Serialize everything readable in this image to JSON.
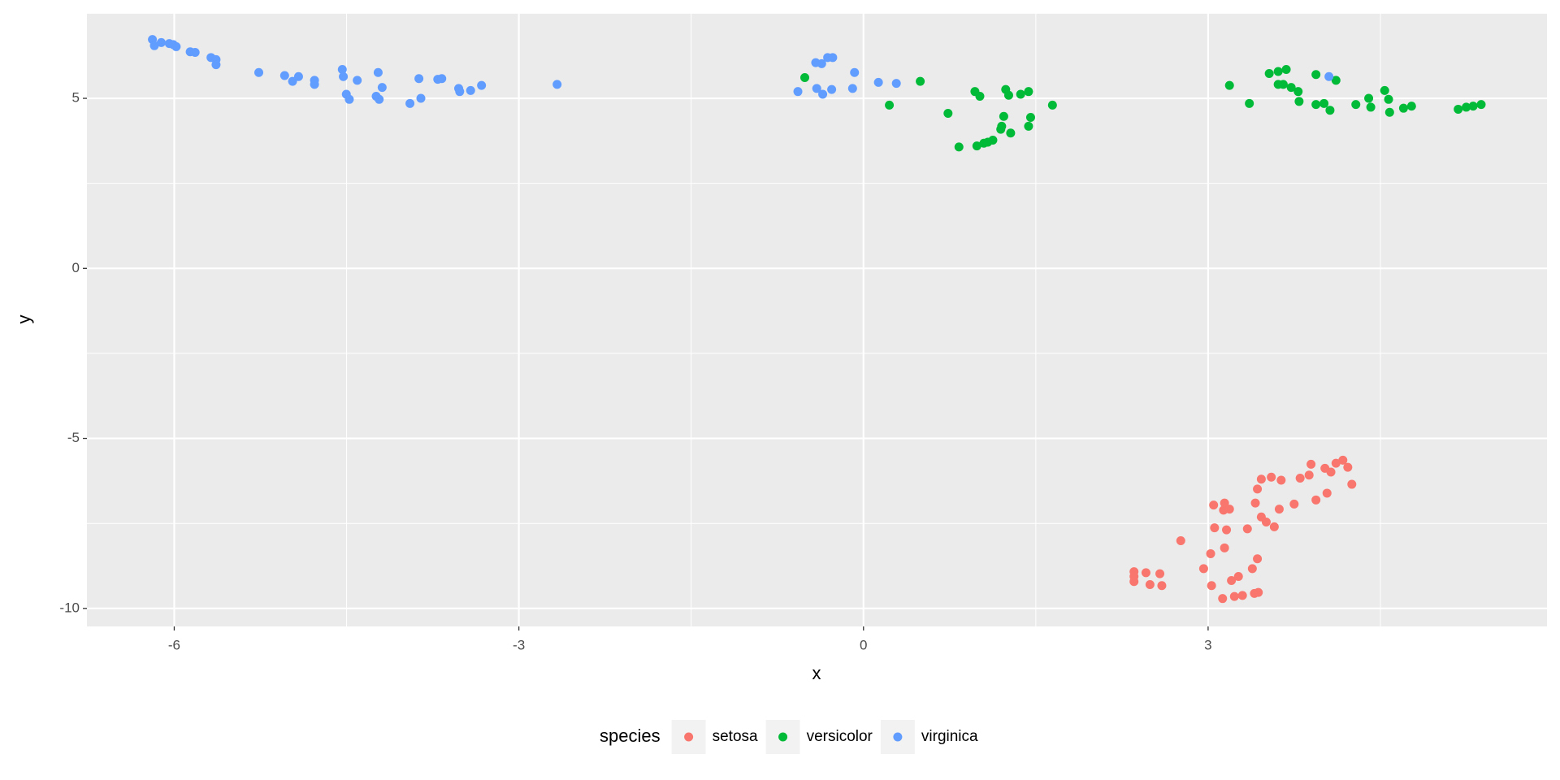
{
  "chart_data": {
    "type": "scatter",
    "x_label": "x",
    "y_label": "y",
    "legend_title": "species",
    "legend_position": "bottom",
    "grid": true,
    "background": "#ebebeb",
    "grid_color": "#ffffff",
    "xlim": [
      -6.76,
      5.95
    ],
    "ylim": [
      -10.53,
      7.51
    ],
    "xticks": [
      -6,
      -3,
      0,
      3
    ],
    "yticks": [
      -10,
      -5,
      0,
      5
    ],
    "x_minor_grid": [
      -4.5,
      -1.5,
      1.5,
      4.5
    ],
    "y_minor_grid": [
      -7.5,
      -2.5,
      2.5,
      7.5
    ],
    "series": [
      {
        "name": "setosa",
        "color": "#f8766d",
        "x": [
          2.355,
          2.355,
          2.355,
          2.459,
          2.494,
          2.58,
          2.597,
          2.762,
          2.961,
          3.022,
          3.03,
          3.048,
          3.056,
          3.126,
          3.143,
          3.134,
          3.16,
          3.143,
          3.186,
          3.203,
          3.264,
          3.229,
          3.299,
          3.342,
          3.385,
          3.403,
          3.429,
          3.437,
          3.411,
          3.429,
          3.463,
          3.463,
          3.506,
          3.55,
          3.576,
          3.619,
          3.636,
          3.749,
          3.801,
          3.879,
          3.896,
          3.939,
          4.017,
          4.035,
          4.069,
          4.113,
          4.173,
          4.216,
          4.251
        ],
        "y": [
          -8.92,
          -9.06,
          -9.21,
          -8.95,
          -9.3,
          -8.98,
          -9.33,
          -8.01,
          -8.83,
          -8.39,
          -9.33,
          -6.96,
          -7.63,
          -9.71,
          -8.22,
          -7.11,
          -7.69,
          -6.9,
          -7.08,
          -9.18,
          -9.06,
          -9.65,
          -9.62,
          -7.66,
          -8.83,
          -9.56,
          -8.54,
          -9.53,
          -6.9,
          -6.49,
          -6.2,
          -7.31,
          -7.46,
          -6.14,
          -7.6,
          -7.08,
          -6.23,
          -6.93,
          -6.17,
          -6.08,
          -5.76,
          -6.81,
          -5.88,
          -6.61,
          -5.99,
          -5.73,
          -5.64,
          -5.85,
          -6.35
        ]
      },
      {
        "name": "versicolor",
        "color": "#00ba38",
        "x": [
          -0.511,
          0.225,
          0.494,
          0.736,
          0.831,
          0.97,
          0.987,
          1.013,
          1.048,
          1.082,
          1.126,
          1.195,
          1.203,
          1.221,
          1.238,
          1.264,
          1.281,
          1.368,
          1.437,
          1.437,
          1.455,
          1.645,
          3.186,
          3.359,
          3.532,
          3.61,
          3.61,
          3.68,
          3.654,
          3.723,
          3.784,
          3.792,
          3.939,
          3.939,
          4.009,
          4.061,
          4.113,
          4.286,
          4.398,
          4.416,
          4.537,
          4.571,
          4.58,
          4.701,
          4.771,
          5.177,
          5.247,
          5.307,
          5.377
        ],
        "y": [
          5.61,
          4.8,
          5.5,
          4.56,
          3.57,
          5.2,
          3.6,
          5.06,
          3.68,
          3.71,
          3.77,
          4.09,
          4.18,
          4.47,
          5.26,
          5.09,
          3.98,
          5.12,
          5.2,
          4.18,
          4.44,
          4.8,
          5.38,
          4.85,
          5.73,
          5.79,
          5.41,
          5.85,
          5.41,
          5.32,
          5.2,
          4.91,
          5.7,
          4.82,
          4.85,
          4.65,
          5.53,
          4.82,
          5.0,
          4.74,
          5.23,
          4.97,
          4.59,
          4.71,
          4.77,
          4.68,
          4.74,
          4.77,
          4.82
        ]
      },
      {
        "name": "virginica",
        "color": "#619cff",
        "x": [
          -6.19,
          -6.173,
          -6.113,
          -6.043,
          -6.009,
          -5.983,
          -5.861,
          -5.818,
          -5.68,
          -5.636,
          -5.636,
          -5.264,
          -5.039,
          -4.97,
          -4.918,
          -4.779,
          -4.779,
          -4.537,
          -4.528,
          -4.502,
          -4.476,
          -4.407,
          -4.225,
          -4.242,
          -4.216,
          -4.19,
          -3.948,
          -3.87,
          -3.853,
          -3.706,
          -3.671,
          -3.524,
          -3.515,
          -3.42,
          -3.325,
          -2.667,
          -0.571,
          -0.416,
          -0.364,
          -0.312,
          -0.268,
          -0.407,
          -0.355,
          -0.277,
          -0.095,
          -0.078,
          0.13,
          0.286,
          4.052
        ],
        "y": [
          6.73,
          6.55,
          6.64,
          6.61,
          6.58,
          6.52,
          6.37,
          6.35,
          6.2,
          6.14,
          5.99,
          5.76,
          5.67,
          5.5,
          5.64,
          5.53,
          5.41,
          5.85,
          5.64,
          5.12,
          4.97,
          5.53,
          5.76,
          5.06,
          4.97,
          5.32,
          4.85,
          5.58,
          5.0,
          5.56,
          5.58,
          5.29,
          5.2,
          5.23,
          5.38,
          5.41,
          5.2,
          6.05,
          6.02,
          6.2,
          6.2,
          5.29,
          5.12,
          5.26,
          5.29,
          5.76,
          5.47,
          5.44,
          5.64
        ]
      }
    ]
  }
}
